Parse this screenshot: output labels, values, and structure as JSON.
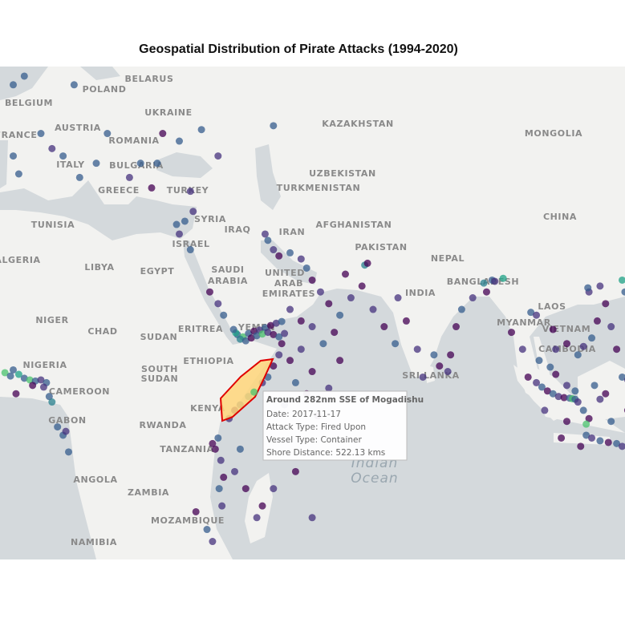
{
  "title": "Geospatial Distribution of Pirate Attacks (1994-2020)",
  "map": {
    "labels": [
      "POLAND",
      "BELARUS",
      "BELGIUM",
      "UKRAINE",
      "FRANCE",
      "AUSTRIA",
      "KAZAKHSTAN",
      "MONGOLIA",
      "ROMANIA",
      "ITALY",
      "BULGARIA",
      "UZBEKISTAN",
      "GREECE",
      "TURKEY",
      "TURKMENISTAN",
      "TUNISIA",
      "SYRIA",
      "IRAQ",
      "IRAN",
      "AFGHANISTAN",
      "CHINA",
      "ISRAEL",
      "PAKISTAN",
      "ALGERIA",
      "LIBYA",
      "EGYPT",
      "SAUDI",
      "ARABIA",
      "NEPAL",
      "UNITED",
      "ARAB",
      "EMIRATES",
      "BANGLADESH",
      "INDIA",
      "LAOS",
      "NIGER",
      "CHAD",
      "SUDAN",
      "ERITREA",
      "YEMEN",
      "MYANMAR",
      "VIETNAM",
      "ETHIOPIA",
      "SOUTH",
      "SUDAN",
      "SRI LANKA",
      "CAMBODIA",
      "NIGERIA",
      "CAMEROON",
      "KENYA",
      "GABON",
      "RWANDA",
      "TANZANIA",
      "ANGOLA",
      "ZAMBIA",
      "MOZAMBIQUE",
      "NAMIBIA"
    ],
    "ocean_label": [
      "Indian",
      "Ocean"
    ]
  },
  "points": [
    [
      43.5,
      12.6,
      "#365c8d"
    ],
    [
      44.5,
      12.2,
      "#4ac16d"
    ],
    [
      45.5,
      12.8,
      "#365c8d"
    ],
    [
      46.5,
      13.2,
      "#440154"
    ],
    [
      47.5,
      13.4,
      "#46327e"
    ],
    [
      48.5,
      13.8,
      "#365c8d"
    ],
    [
      49.5,
      14.2,
      "#440154"
    ],
    [
      50.5,
      14.6,
      "#46327e"
    ],
    [
      51.5,
      14.9,
      "#365c8d"
    ],
    [
      44,
      11.8,
      "#277f8e"
    ],
    [
      45,
      11.5,
      "#365c8d"
    ],
    [
      46,
      12.0,
      "#440154"
    ],
    [
      47,
      12.4,
      "#365c8d"
    ],
    [
      48,
      12.7,
      "#4ac16d"
    ],
    [
      49,
      13.0,
      "#46327e"
    ],
    [
      50,
      12.6,
      "#440154"
    ],
    [
      51,
      12.2,
      "#365c8d"
    ],
    [
      52,
      12.8,
      "#46327e"
    ],
    [
      43.2,
      12.9,
      "#1fa187"
    ],
    [
      42.8,
      13.5,
      "#365c8d"
    ],
    [
      51.5,
      11,
      "#440154"
    ],
    [
      51,
      9,
      "#46327e"
    ],
    [
      50,
      7,
      "#440154"
    ],
    [
      49,
      5,
      "#365c8d"
    ],
    [
      48,
      4,
      "#46327e"
    ],
    [
      45.5,
      1.5,
      "#277f8e"
    ],
    [
      44,
      0,
      "#365c8d"
    ],
    [
      43,
      -1,
      "#440154"
    ],
    [
      42,
      -2.5,
      "#46327e"
    ],
    [
      53,
      8,
      "#440154"
    ],
    [
      55,
      10,
      "#46327e"
    ],
    [
      57,
      6,
      "#440154"
    ],
    [
      54,
      4,
      "#365c8d"
    ],
    [
      56,
      2,
      "#440154"
    ],
    [
      52,
      0,
      "#46327e"
    ],
    [
      58,
      -2,
      "#440154"
    ],
    [
      60,
      3,
      "#46327e"
    ],
    [
      62,
      8,
      "#440154"
    ],
    [
      59,
      11,
      "#365c8d"
    ],
    [
      61,
      13,
      "#440154"
    ],
    [
      57,
      14,
      "#46327e"
    ],
    [
      55,
      15,
      "#440154"
    ],
    [
      53,
      17,
      "#46327e"
    ],
    [
      56,
      24,
      "#365c8d"
    ],
    [
      55,
      25.5,
      "#46327e"
    ],
    [
      57,
      22,
      "#440154"
    ],
    [
      58.5,
      20,
      "#46327e"
    ],
    [
      60,
      18,
      "#440154"
    ],
    [
      62,
      16,
      "#365c8d"
    ],
    [
      64,
      19,
      "#46327e"
    ],
    [
      66,
      21,
      "#440154"
    ],
    [
      68,
      17,
      "#46327e"
    ],
    [
      70,
      14,
      "#440154"
    ],
    [
      63,
      23,
      "#440154"
    ],
    [
      50,
      27,
      "#46327e"
    ],
    [
      49,
      28.5,
      "#365c8d"
    ],
    [
      48.5,
      29.5,
      "#46327e"
    ],
    [
      51,
      26,
      "#440154"
    ],
    [
      53,
      26.5,
      "#365c8d"
    ],
    [
      66.5,
      24.5,
      "#277f8e"
    ],
    [
      67,
      24.8,
      "#440154"
    ],
    [
      72.5,
      19,
      "#46327e"
    ],
    [
      74,
      15,
      "#440154"
    ],
    [
      76,
      10,
      "#46327e"
    ],
    [
      72,
      11,
      "#365c8d"
    ],
    [
      80,
      7,
      "#440154"
    ],
    [
      81.5,
      6,
      "#46327e"
    ],
    [
      79,
      9,
      "#365c8d"
    ],
    [
      82,
      9,
      "#440154"
    ],
    [
      77,
      5,
      "#46327e"
    ],
    [
      88,
      21.5,
      "#277f8e"
    ],
    [
      89.5,
      22,
      "#365c8d"
    ],
    [
      90,
      21.8,
      "#46327e"
    ],
    [
      91.5,
      22.3,
      "#1fa187"
    ],
    [
      88.5,
      20,
      "#440154"
    ],
    [
      86,
      19,
      "#46327e"
    ],
    [
      83,
      14,
      "#440154"
    ],
    [
      84,
      17,
      "#365c8d"
    ],
    [
      41,
      16,
      "#365c8d"
    ],
    [
      40,
      18,
      "#46327e"
    ],
    [
      38.5,
      20,
      "#440154"
    ],
    [
      35,
      27,
      "#365c8d"
    ],
    [
      33,
      29.5,
      "#46327e"
    ],
    [
      32.5,
      31,
      "#365c8d"
    ],
    [
      40,
      -6,
      "#365c8d"
    ],
    [
      39.5,
      -8,
      "#440154"
    ],
    [
      40.5,
      -10,
      "#46327e"
    ],
    [
      41,
      -13,
      "#440154"
    ],
    [
      40.2,
      -15,
      "#365c8d"
    ],
    [
      40.7,
      -18,
      "#46327e"
    ],
    [
      39,
      -7,
      "#440154"
    ],
    [
      43,
      -12,
      "#46327e"
    ],
    [
      45,
      -15,
      "#440154"
    ],
    [
      47,
      -20,
      "#46327e"
    ],
    [
      48,
      -18,
      "#440154"
    ],
    [
      50,
      -15,
      "#46327e"
    ],
    [
      44,
      -8,
      "#365c8d"
    ],
    [
      38,
      -22,
      "#365c8d"
    ],
    [
      39,
      -24,
      "#46327e"
    ],
    [
      36,
      -19,
      "#440154"
    ],
    [
      54,
      -12,
      "#440154"
    ],
    [
      57,
      -20,
      "#46327e"
    ],
    [
      3,
      6.3,
      "#365c8d"
    ],
    [
      4,
      5.5,
      "#1fa187"
    ],
    [
      5,
      4.8,
      "#365c8d"
    ],
    [
      6,
      4.5,
      "#4ac16d"
    ],
    [
      7,
      4.3,
      "#365c8d"
    ],
    [
      8,
      4.5,
      "#46327e"
    ],
    [
      9,
      4.0,
      "#365c8d"
    ],
    [
      1.5,
      5.8,
      "#4ac16d"
    ],
    [
      2.5,
      5.2,
      "#365c8d"
    ],
    [
      6.5,
      3.5,
      "#440154"
    ],
    [
      8.5,
      3.2,
      "#46327e"
    ],
    [
      9.5,
      1.5,
      "#365c8d"
    ],
    [
      10,
      0.5,
      "#277f8e"
    ],
    [
      3.5,
      2,
      "#440154"
    ],
    [
      11,
      -4,
      "#365c8d"
    ],
    [
      12,
      -5.5,
      "#365c8d"
    ],
    [
      13,
      -8.5,
      "#365c8d"
    ],
    [
      12.5,
      -4.8,
      "#46327e"
    ],
    [
      5,
      51,
      "#365c8d"
    ],
    [
      6,
      52.5,
      "#46327e"
    ],
    [
      3,
      50,
      "#365c8d"
    ],
    [
      14,
      50,
      "#365c8d"
    ],
    [
      25,
      55,
      "#365c8d"
    ],
    [
      8,
      44,
      "#365c8d"
    ],
    [
      10,
      42,
      "#46327e"
    ],
    [
      12,
      41,
      "#365c8d"
    ],
    [
      15,
      38,
      "#365c8d"
    ],
    [
      18,
      40,
      "#365c8d"
    ],
    [
      4,
      38.5,
      "#365c8d"
    ],
    [
      3,
      41,
      "#365c8d"
    ],
    [
      24,
      38,
      "#46327e"
    ],
    [
      26,
      40,
      "#365c8d"
    ],
    [
      28,
      36.5,
      "#440154"
    ],
    [
      33,
      43,
      "#365c8d"
    ],
    [
      37,
      44.5,
      "#365c8d"
    ],
    [
      40,
      41,
      "#46327e"
    ],
    [
      30,
      44,
      "#440154"
    ],
    [
      35,
      36,
      "#46327e"
    ],
    [
      34,
      31.5,
      "#365c8d"
    ],
    [
      35.5,
      33,
      "#46327e"
    ],
    [
      29,
      40,
      "#365c8d"
    ],
    [
      50,
      45,
      "#365c8d"
    ],
    [
      20,
      44,
      "#365c8d"
    ],
    [
      96,
      5,
      "#440154"
    ],
    [
      97.5,
      4,
      "#46327e"
    ],
    [
      98.5,
      3.2,
      "#365c8d"
    ],
    [
      99.5,
      2.5,
      "#440154"
    ],
    [
      100.5,
      2,
      "#365c8d"
    ],
    [
      101.5,
      1.5,
      "#46327e"
    ],
    [
      102.5,
      1.3,
      "#440154"
    ],
    [
      103.5,
      1.2,
      "#365c8d"
    ],
    [
      104,
      1.1,
      "#4ac16d"
    ],
    [
      104.5,
      1.0,
      "#365c8d"
    ],
    [
      105,
      0.5,
      "#46327e"
    ],
    [
      106,
      -1,
      "#365c8d"
    ],
    [
      107,
      -2.5,
      "#440154"
    ],
    [
      106.5,
      -5.5,
      "#365c8d"
    ],
    [
      107.5,
      -6,
      "#46327e"
    ],
    [
      109,
      -6.5,
      "#365c8d"
    ],
    [
      110.5,
      -6.8,
      "#440154"
    ],
    [
      112,
      -7,
      "#365c8d"
    ],
    [
      113,
      -7.5,
      "#46327e"
    ],
    [
      105.5,
      -7.5,
      "#440154"
    ],
    [
      104.5,
      2.5,
      "#365c8d"
    ],
    [
      103,
      3.5,
      "#46327e"
    ],
    [
      101,
      5.5,
      "#440154"
    ],
    [
      100,
      6.8,
      "#365c8d"
    ],
    [
      101,
      10,
      "#46327e"
    ],
    [
      103,
      11,
      "#440154"
    ],
    [
      105,
      9,
      "#365c8d"
    ],
    [
      106,
      10.5,
      "#46327e"
    ],
    [
      107.5,
      12,
      "#365c8d"
    ],
    [
      108.5,
      15,
      "#440154"
    ],
    [
      107,
      20,
      "#46327e"
    ],
    [
      106.8,
      20.7,
      "#365c8d"
    ],
    [
      109,
      21,
      "#46327e"
    ],
    [
      113,
      22,
      "#1fa187"
    ],
    [
      113.5,
      20,
      "#365c8d"
    ],
    [
      110,
      18,
      "#440154"
    ],
    [
      111,
      14,
      "#46327e"
    ],
    [
      112,
      10,
      "#440154"
    ],
    [
      113,
      5,
      "#365c8d"
    ],
    [
      114,
      4.5,
      "#46327e"
    ],
    [
      110,
      2,
      "#440154"
    ],
    [
      108,
      3.5,
      "#365c8d"
    ],
    [
      109,
      1,
      "#46327e"
    ],
    [
      111,
      -3,
      "#365c8d"
    ],
    [
      114,
      -1,
      "#440154"
    ],
    [
      96.5,
      16.5,
      "#365c8d"
    ],
    [
      97.5,
      16,
      "#46327e"
    ],
    [
      100.5,
      13.5,
      "#440154"
    ],
    [
      98,
      8,
      "#365c8d"
    ],
    [
      95,
      10,
      "#46327e"
    ],
    [
      93,
      13,
      "#440154"
    ],
    [
      103,
      -3,
      "#440154"
    ],
    [
      99,
      -1,
      "#46327e"
    ],
    [
      106.5,
      -3.5,
      "#4ac16d"
    ],
    [
      102,
      -6,
      "#440154"
    ],
    [
      46.5,
      2.3,
      "#4ac16d"
    ]
  ],
  "tooltip": {
    "title": "Around 282nm SSE of Mogadishu",
    "lines": [
      "Date: 2017-11-17",
      "Attack Type: Fired Upon",
      "Vessel Type: Container",
      "Shore Distance: 522.13 kms"
    ]
  }
}
